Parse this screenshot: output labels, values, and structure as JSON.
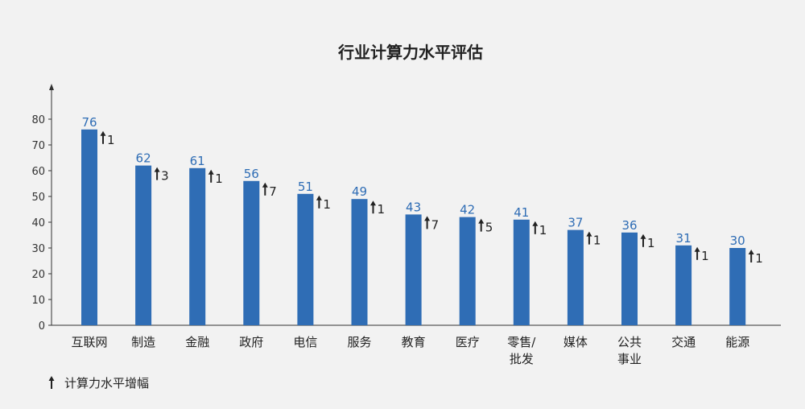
{
  "chart_data": {
    "type": "bar",
    "title": "行业计算力水平评估",
    "categories": [
      [
        "互联网"
      ],
      [
        "制造"
      ],
      [
        "金融"
      ],
      [
        "政府"
      ],
      [
        "电信"
      ],
      [
        "服务"
      ],
      [
        "教育"
      ],
      [
        "医疗"
      ],
      [
        "零售/",
        "批发"
      ],
      [
        "媒体"
      ],
      [
        "公共",
        "事业"
      ],
      [
        "交通"
      ],
      [
        "能源"
      ]
    ],
    "series": [
      {
        "name": "",
        "values": [
          76,
          62,
          61,
          56,
          51,
          49,
          43,
          42,
          41,
          37,
          36,
          31,
          30
        ]
      },
      {
        "name": "计算力水平增幅",
        "values": [
          1,
          3,
          1,
          7,
          1,
          1,
          7,
          5,
          1,
          1,
          1,
          1,
          1
        ]
      }
    ],
    "yticks": [
      0,
      10,
      20,
      30,
      40,
      50,
      60,
      70,
      80
    ],
    "ylim": [
      0,
      85
    ],
    "legend": "bottom-left",
    "grid": false,
    "colors": {
      "bar": "#2f6db5",
      "value_label": "#2f6db5",
      "text": "#222222",
      "axis": "#333333"
    }
  }
}
